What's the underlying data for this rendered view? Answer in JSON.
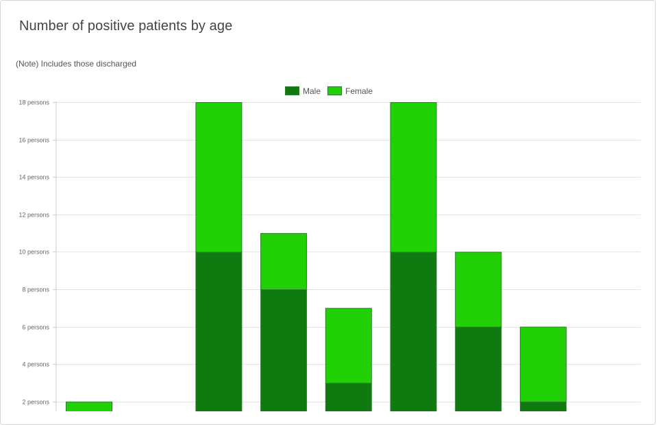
{
  "header": {
    "title": "Number of positive patients by age",
    "note": "(Note) Includes those discharged"
  },
  "colors": {
    "male": "#0f7a0f",
    "female": "#22d006",
    "bar_border": "#2e7d2e",
    "grid": "#e3e3e3"
  },
  "chart_data": {
    "type": "bar",
    "stacked": true,
    "categories": [
      "",
      "",
      "",
      "",
      "",
      "",
      "",
      ""
    ],
    "series": [
      {
        "name": "Male",
        "values": [
          0,
          0,
          10,
          8,
          3,
          10,
          6,
          2
        ]
      },
      {
        "name": "Female",
        "values": [
          2,
          0,
          8,
          3,
          4,
          8,
          4,
          4
        ]
      }
    ],
    "ylim": [
      0,
      18
    ],
    "yticks": [
      {
        "value": 2,
        "label": "2 persons"
      },
      {
        "value": 4,
        "label": "4 persons"
      },
      {
        "value": 6,
        "label": "6 persons"
      },
      {
        "value": 8,
        "label": "8 persons"
      },
      {
        "value": 10,
        "label": "10 persons"
      },
      {
        "value": 12,
        "label": "12 persons"
      },
      {
        "value": 14,
        "label": "14 persons"
      },
      {
        "value": 16,
        "label": "16 persons"
      },
      {
        "value": 18,
        "label": "18 persons"
      }
    ],
    "legend_position": "top-center",
    "grid": true
  }
}
